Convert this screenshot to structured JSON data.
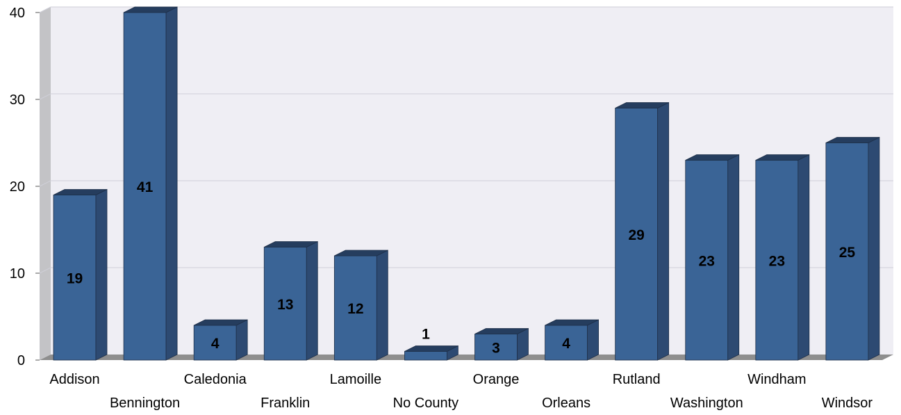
{
  "chart_data": {
    "type": "bar",
    "title": "",
    "xlabel": "",
    "ylabel": "",
    "categories": [
      "Addison",
      "Bennington",
      "Caledonia",
      "Franklin",
      "Lamoille",
      "No County",
      "Orange",
      "Orleans",
      "Rutland",
      "Washington",
      "Windham",
      "Windsor"
    ],
    "values": [
      19,
      41,
      4,
      13,
      12,
      1,
      3,
      4,
      29,
      23,
      23,
      25
    ],
    "ylim": [
      0,
      40
    ],
    "yticks": [
      0,
      10,
      20,
      30,
      40
    ],
    "grid": true,
    "style": "3d",
    "colors": {
      "bar_front": "#3a6496",
      "bar_top": "#253d5e",
      "bar_side": "#2d4a72",
      "plot_background": "#efeef4",
      "wall_side": "#c3c3c6",
      "floor": "#8e8e8e",
      "gridline": "#cfcfd8"
    }
  }
}
